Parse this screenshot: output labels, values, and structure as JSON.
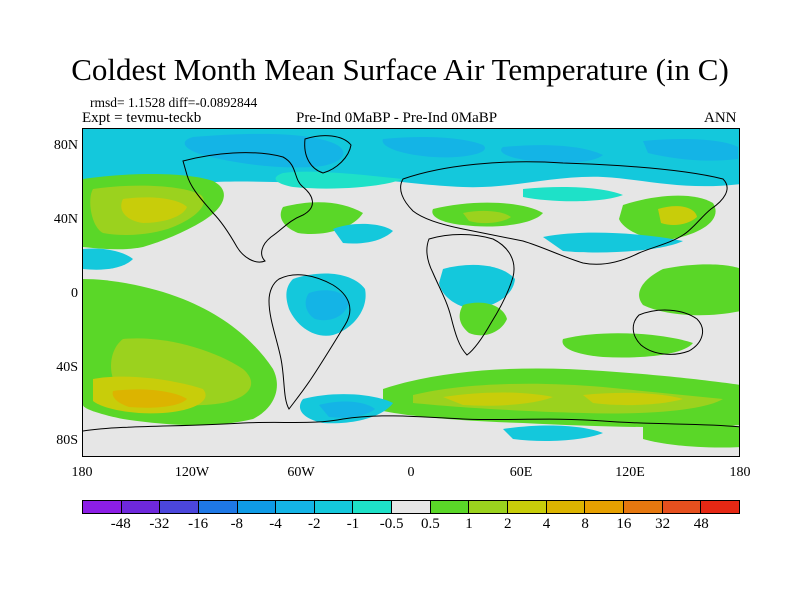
{
  "title": "Coldest Month Mean Surface Air Temperature (in C)",
  "stats": {
    "rmsd_label": "rmsd=",
    "rmsd": "1.1528",
    "diff_label": "diff=",
    "diff": "-0.0892844"
  },
  "experiment": "Expt = tevmu-teckb",
  "comparison": "Pre-Ind 0MaBP - Pre-Ind 0MaBP",
  "period": "ANN",
  "map": {
    "lat_ticks": [
      "80N",
      "40N",
      "0",
      "40S",
      "80S"
    ],
    "lon_ticks": [
      "180",
      "120W",
      "60W",
      "0",
      "60E",
      "120E",
      "180"
    ],
    "background_color": "#e6e6e6",
    "coastline_color": "#000000"
  },
  "colorbar": {
    "colors": [
      "#8c1ee6",
      "#6e28dc",
      "#4b46dc",
      "#1e78e6",
      "#0f9be6",
      "#14b4e6",
      "#14c8dc",
      "#1ee1c8",
      "#e6e6e6",
      "#5ad728",
      "#9bd21e",
      "#c8cd0a",
      "#dcb400",
      "#e6a000",
      "#e6780f",
      "#e6501e",
      "#e62814"
    ],
    "labels": [
      "-48",
      "-32",
      "-16",
      "-8",
      "-4",
      "-2",
      "-1",
      "-0.5",
      "0.5",
      "1",
      "2",
      "4",
      "8",
      "16",
      "32",
      "48"
    ]
  }
}
